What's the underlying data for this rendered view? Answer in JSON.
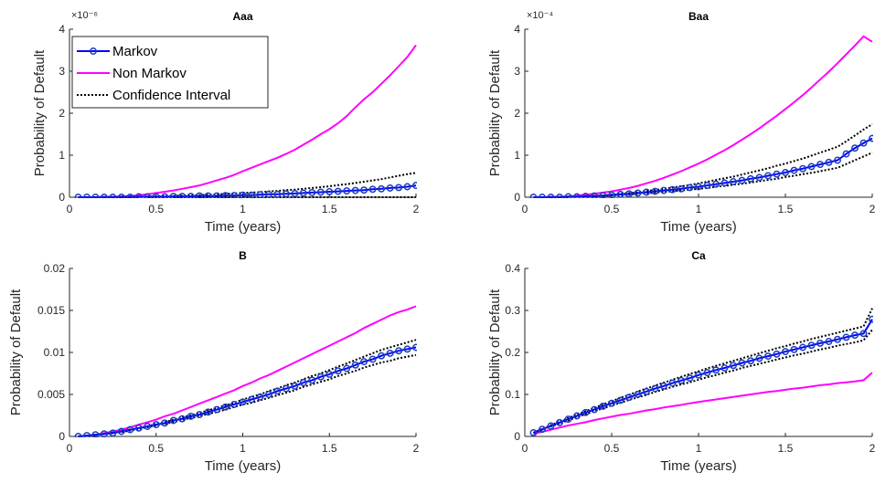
{
  "colors": {
    "markov": "#0000ff",
    "markov_marker": "#1a3dbf",
    "non_markov": "#ff00ff",
    "ci": "#000000",
    "axis": "#262626"
  },
  "legend": {
    "placement": "top-left of first panel",
    "entries": [
      "Markov",
      "Non Markov",
      "Confidence Interval"
    ]
  },
  "chart_data": [
    {
      "type": "line",
      "title": "Aaa",
      "xlabel": "Time (years)",
      "ylabel": "Probability of Default",
      "exponent_label": "×10⁻⁶",
      "xlim": [
        0,
        2
      ],
      "ylim": [
        0,
        4
      ],
      "xticks": [
        0,
        0.5,
        1,
        1.5,
        2
      ],
      "xticklabels": [
        "0",
        "0.5",
        "1",
        "1.5",
        "2"
      ],
      "yticks": [
        0,
        1,
        2,
        3,
        4
      ],
      "yticklabels": [
        "0",
        "1",
        "2",
        "3",
        "4"
      ],
      "x": [
        0.05,
        0.1,
        0.15,
        0.2,
        0.25,
        0.3,
        0.35,
        0.4,
        0.45,
        0.5,
        0.55,
        0.6,
        0.65,
        0.7,
        0.75,
        0.8,
        0.85,
        0.9,
        0.95,
        1.0,
        1.05,
        1.1,
        1.15,
        1.2,
        1.25,
        1.3,
        1.35,
        1.4,
        1.45,
        1.5,
        1.55,
        1.6,
        1.65,
        1.7,
        1.75,
        1.8,
        1.85,
        1.9,
        1.95,
        2.0
      ],
      "series": [
        {
          "name": "Markov",
          "values": [
            0.0,
            0.0,
            0.0,
            0.0,
            0.0,
            0.0,
            0.0,
            0.01,
            0.01,
            0.01,
            0.01,
            0.02,
            0.02,
            0.02,
            0.03,
            0.03,
            0.03,
            0.04,
            0.04,
            0.05,
            0.05,
            0.06,
            0.07,
            0.07,
            0.08,
            0.09,
            0.1,
            0.11,
            0.12,
            0.13,
            0.14,
            0.15,
            0.16,
            0.17,
            0.19,
            0.2,
            0.22,
            0.23,
            0.25,
            0.28
          ]
        },
        {
          "name": "Non Markov",
          "values": [
            0.0,
            0.0,
            0.0,
            0.01,
            0.01,
            0.02,
            0.03,
            0.05,
            0.07,
            0.1,
            0.13,
            0.16,
            0.2,
            0.24,
            0.28,
            0.34,
            0.4,
            0.46,
            0.53,
            0.62,
            0.7,
            0.78,
            0.86,
            0.94,
            1.03,
            1.13,
            1.25,
            1.37,
            1.5,
            1.62,
            1.76,
            1.93,
            2.14,
            2.33,
            2.5,
            2.7,
            2.9,
            3.12,
            3.34,
            3.62
          ]
        },
        {
          "name": "Confidence Interval",
          "values": [
            0.0,
            0.0,
            0.0,
            0.0,
            0.0,
            0.01,
            0.01,
            0.01,
            0.02,
            0.02,
            0.03,
            0.03,
            0.04,
            0.05,
            0.05,
            0.06,
            0.07,
            0.08,
            0.09,
            0.1,
            0.11,
            0.12,
            0.14,
            0.15,
            0.17,
            0.18,
            0.2,
            0.22,
            0.24,
            0.26,
            0.29,
            0.31,
            0.34,
            0.37,
            0.4,
            0.43,
            0.47,
            0.51,
            0.55,
            0.58
          ]
        },
        {
          "values": [
            0.0,
            0.0,
            0.0,
            0.0,
            0.0,
            0.0,
            0.0,
            0.0,
            0.0,
            0.0,
            0.0,
            0.0,
            0.0,
            0.0,
            0.0,
            0.0,
            0.0,
            0.0,
            0.0,
            0.0,
            0.0,
            0.0,
            0.0,
            0.0,
            0.0,
            0.0,
            0.0,
            0.0,
            0.0,
            0.0,
            0.0,
            0.0,
            0.0,
            0.0,
            0.0,
            0.0,
            0.0,
            0.0,
            0.0,
            0.0
          ]
        }
      ]
    },
    {
      "type": "line",
      "title": "Baa",
      "xlabel": "Time (years)",
      "ylabel": "Probability of Default",
      "exponent_label": "×10⁻⁴",
      "xlim": [
        0,
        2
      ],
      "ylim": [
        0,
        4
      ],
      "xticks": [
        0,
        0.5,
        1,
        1.5,
        2
      ],
      "xticklabels": [
        "0",
        "0.5",
        "1",
        "1.5",
        "2"
      ],
      "yticks": [
        0,
        1,
        2,
        3,
        4
      ],
      "yticklabels": [
        "0",
        "1",
        "2",
        "3",
        "4"
      ],
      "x": [
        0.05,
        0.1,
        0.15,
        0.2,
        0.25,
        0.3,
        0.35,
        0.4,
        0.45,
        0.5,
        0.55,
        0.6,
        0.65,
        0.7,
        0.75,
        0.8,
        0.85,
        0.9,
        0.95,
        1.0,
        1.05,
        1.1,
        1.15,
        1.2,
        1.25,
        1.3,
        1.35,
        1.4,
        1.45,
        1.5,
        1.55,
        1.6,
        1.65,
        1.7,
        1.75,
        1.8,
        1.85,
        1.9,
        1.95,
        2.0
      ],
      "series": [
        {
          "name": "Markov",
          "values": [
            0.0,
            0.0,
            0.0,
            0.0,
            0.01,
            0.01,
            0.02,
            0.03,
            0.04,
            0.05,
            0.07,
            0.08,
            0.1,
            0.12,
            0.14,
            0.16,
            0.18,
            0.2,
            0.23,
            0.25,
            0.28,
            0.31,
            0.34,
            0.37,
            0.4,
            0.44,
            0.47,
            0.51,
            0.55,
            0.59,
            0.64,
            0.68,
            0.73,
            0.78,
            0.83,
            0.88,
            1.03,
            1.17,
            1.29,
            1.4
          ]
        },
        {
          "name": "Non Markov",
          "values": [
            0.0,
            0.0,
            0.01,
            0.01,
            0.02,
            0.04,
            0.06,
            0.08,
            0.11,
            0.14,
            0.18,
            0.22,
            0.27,
            0.33,
            0.39,
            0.46,
            0.54,
            0.62,
            0.71,
            0.8,
            0.9,
            1.01,
            1.12,
            1.24,
            1.37,
            1.5,
            1.64,
            1.79,
            1.94,
            2.1,
            2.26,
            2.43,
            2.61,
            2.8,
            2.99,
            3.19,
            3.4,
            3.61,
            3.83,
            3.7
          ]
        },
        {
          "name": "Confidence Interval",
          "values": [
            0.0,
            0.0,
            0.0,
            0.0,
            0.01,
            0.01,
            0.02,
            0.03,
            0.04,
            0.06,
            0.08,
            0.1,
            0.12,
            0.15,
            0.17,
            0.2,
            0.23,
            0.26,
            0.29,
            0.33,
            0.37,
            0.41,
            0.45,
            0.49,
            0.54,
            0.59,
            0.64,
            0.69,
            0.75,
            0.8,
            0.86,
            0.92,
            0.99,
            1.06,
            1.13,
            1.2,
            1.33,
            1.47,
            1.61,
            1.74
          ]
        },
        {
          "values": [
            0.0,
            0.0,
            0.0,
            0.0,
            0.0,
            0.01,
            0.01,
            0.02,
            0.03,
            0.04,
            0.05,
            0.06,
            0.08,
            0.09,
            0.11,
            0.13,
            0.14,
            0.16,
            0.18,
            0.2,
            0.22,
            0.25,
            0.27,
            0.3,
            0.32,
            0.35,
            0.38,
            0.41,
            0.44,
            0.48,
            0.51,
            0.55,
            0.58,
            0.62,
            0.66,
            0.7,
            0.79,
            0.88,
            0.97,
            1.06
          ]
        }
      ]
    },
    {
      "type": "line",
      "title": "B",
      "xlabel": "Time (years)",
      "ylabel": "Probability of Default",
      "exponent_label": "",
      "xlim": [
        0,
        2
      ],
      "ylim": [
        0,
        0.02
      ],
      "xticks": [
        0,
        0.5,
        1,
        1.5,
        2
      ],
      "xticklabels": [
        "0",
        "0.5",
        "1",
        "1.5",
        "2"
      ],
      "yticks": [
        0,
        0.005,
        0.01,
        0.015,
        0.02
      ],
      "yticklabels": [
        "0",
        "0.005",
        "0.01",
        "0.015",
        "0.02"
      ],
      "x": [
        0.05,
        0.1,
        0.15,
        0.2,
        0.25,
        0.3,
        0.35,
        0.4,
        0.45,
        0.5,
        0.55,
        0.6,
        0.65,
        0.7,
        0.75,
        0.8,
        0.85,
        0.9,
        0.95,
        1.0,
        1.05,
        1.1,
        1.15,
        1.2,
        1.25,
        1.3,
        1.35,
        1.4,
        1.45,
        1.5,
        1.55,
        1.6,
        1.65,
        1.7,
        1.75,
        1.8,
        1.85,
        1.9,
        1.95,
        2.0
      ],
      "series": [
        {
          "name": "Markov",
          "values": [
            0.0,
            0.0001,
            0.0002,
            0.0003,
            0.0004,
            0.0006,
            0.0008,
            0.001,
            0.0012,
            0.0014,
            0.0016,
            0.0019,
            0.0021,
            0.0024,
            0.0026,
            0.0029,
            0.0032,
            0.0035,
            0.0038,
            0.0041,
            0.0044,
            0.0047,
            0.005,
            0.0054,
            0.0057,
            0.006,
            0.0064,
            0.0067,
            0.0071,
            0.0074,
            0.0078,
            0.0081,
            0.0085,
            0.0089,
            0.0092,
            0.0096,
            0.0099,
            0.0102,
            0.0104,
            0.0106
          ]
        },
        {
          "name": "Non Markov",
          "values": [
            0.0,
            0.0001,
            0.0002,
            0.0004,
            0.0006,
            0.0008,
            0.0011,
            0.0014,
            0.0017,
            0.002,
            0.0024,
            0.0027,
            0.0031,
            0.0035,
            0.0039,
            0.0043,
            0.0047,
            0.0051,
            0.0055,
            0.006,
            0.0064,
            0.0069,
            0.0073,
            0.0078,
            0.0083,
            0.0088,
            0.0093,
            0.0098,
            0.0103,
            0.0108,
            0.0113,
            0.0118,
            0.0123,
            0.0129,
            0.0134,
            0.0139,
            0.0144,
            0.0148,
            0.0151,
            0.0155
          ]
        },
        {
          "name": "Confidence Interval",
          "values": [
            0.0,
            0.0001,
            0.0002,
            0.0003,
            0.0004,
            0.0006,
            0.0008,
            0.001,
            0.0012,
            0.0015,
            0.0017,
            0.002,
            0.0023,
            0.0025,
            0.0028,
            0.0031,
            0.0034,
            0.0037,
            0.004,
            0.0044,
            0.0047,
            0.005,
            0.0054,
            0.0057,
            0.0061,
            0.0064,
            0.0068,
            0.0072,
            0.0075,
            0.0079,
            0.0083,
            0.0087,
            0.0091,
            0.0095,
            0.0099,
            0.0103,
            0.0106,
            0.0109,
            0.0112,
            0.0115
          ]
        },
        {
          "values": [
            0.0,
            0.0001,
            0.0002,
            0.0003,
            0.0004,
            0.0005,
            0.0007,
            0.0009,
            0.0011,
            0.0013,
            0.0015,
            0.0017,
            0.002,
            0.0022,
            0.0024,
            0.0027,
            0.0029,
            0.0032,
            0.0035,
            0.0038,
            0.004,
            0.0043,
            0.0046,
            0.0049,
            0.0052,
            0.0055,
            0.0059,
            0.0062,
            0.0065,
            0.0068,
            0.0072,
            0.0075,
            0.0078,
            0.0082,
            0.0085,
            0.0088,
            0.009,
            0.0093,
            0.0095,
            0.0097
          ]
        }
      ]
    },
    {
      "type": "line",
      "title": "Ca",
      "xlabel": "Time (years)",
      "ylabel": "Probability of Default",
      "exponent_label": "",
      "xlim": [
        0,
        2
      ],
      "ylim": [
        0,
        0.4
      ],
      "xticks": [
        0,
        0.5,
        1,
        1.5,
        2
      ],
      "xticklabels": [
        "0",
        "0.5",
        "1",
        "1.5",
        "2"
      ],
      "yticks": [
        0,
        0.1,
        0.2,
        0.3,
        0.4
      ],
      "yticklabels": [
        "0",
        "0.1",
        "0.2",
        "0.3",
        "0.4"
      ],
      "x": [
        0.05,
        0.1,
        0.15,
        0.2,
        0.25,
        0.3,
        0.35,
        0.4,
        0.45,
        0.5,
        0.55,
        0.6,
        0.65,
        0.7,
        0.75,
        0.8,
        0.85,
        0.9,
        0.95,
        1.0,
        1.05,
        1.1,
        1.15,
        1.2,
        1.25,
        1.3,
        1.35,
        1.4,
        1.45,
        1.5,
        1.55,
        1.6,
        1.65,
        1.7,
        1.75,
        1.8,
        1.85,
        1.9,
        1.95,
        2.0
      ],
      "series": [
        {
          "name": "Markov",
          "values": [
            0.009,
            0.017,
            0.025,
            0.033,
            0.041,
            0.049,
            0.057,
            0.064,
            0.072,
            0.079,
            0.086,
            0.093,
            0.1,
            0.107,
            0.114,
            0.12,
            0.127,
            0.133,
            0.139,
            0.146,
            0.152,
            0.158,
            0.163,
            0.169,
            0.175,
            0.18,
            0.186,
            0.191,
            0.196,
            0.202,
            0.207,
            0.212,
            0.217,
            0.222,
            0.226,
            0.231,
            0.236,
            0.241,
            0.245,
            0.279
          ]
        },
        {
          "name": "Non Markov",
          "values": [
            0.006,
            0.011,
            0.016,
            0.021,
            0.026,
            0.03,
            0.034,
            0.039,
            0.043,
            0.047,
            0.051,
            0.054,
            0.058,
            0.062,
            0.065,
            0.069,
            0.072,
            0.075,
            0.079,
            0.082,
            0.085,
            0.088,
            0.091,
            0.094,
            0.097,
            0.1,
            0.103,
            0.106,
            0.108,
            0.111,
            0.114,
            0.116,
            0.119,
            0.122,
            0.124,
            0.127,
            0.129,
            0.131,
            0.134,
            0.152
          ]
        },
        {
          "name": "Confidence Interval",
          "values": [
            0.009,
            0.018,
            0.027,
            0.035,
            0.044,
            0.052,
            0.06,
            0.068,
            0.076,
            0.084,
            0.092,
            0.099,
            0.107,
            0.114,
            0.121,
            0.128,
            0.135,
            0.142,
            0.149,
            0.155,
            0.162,
            0.168,
            0.174,
            0.18,
            0.186,
            0.192,
            0.198,
            0.204,
            0.21,
            0.215,
            0.221,
            0.226,
            0.232,
            0.237,
            0.242,
            0.247,
            0.252,
            0.257,
            0.262,
            0.305
          ]
        },
        {
          "values": [
            0.008,
            0.016,
            0.024,
            0.031,
            0.038,
            0.046,
            0.053,
            0.06,
            0.067,
            0.074,
            0.08,
            0.087,
            0.093,
            0.099,
            0.106,
            0.112,
            0.118,
            0.124,
            0.129,
            0.135,
            0.141,
            0.146,
            0.152,
            0.157,
            0.163,
            0.168,
            0.173,
            0.178,
            0.183,
            0.188,
            0.193,
            0.197,
            0.202,
            0.207,
            0.211,
            0.216,
            0.22,
            0.224,
            0.229,
            0.254
          ]
        }
      ]
    }
  ]
}
